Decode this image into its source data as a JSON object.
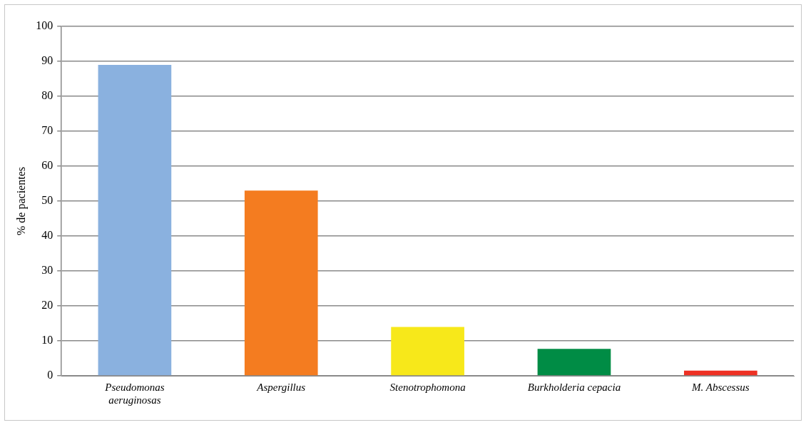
{
  "chart_data": {
    "type": "bar",
    "ylabel": "% de pacientes",
    "categories": [
      "Pseudomonas aeruginosas",
      "Aspergillus",
      "Stenotrophomona",
      "Burkholderia cepacia",
      "M. Abscessus"
    ],
    "values": [
      89,
      53,
      14,
      7.7,
      1.5
    ],
    "colors": [
      "#8ab1df",
      "#f47c20",
      "#f7e81a",
      "#008c45",
      "#ee3124"
    ],
    "ylim": [
      0,
      100
    ],
    "yticks": [
      0,
      10,
      20,
      30,
      40,
      50,
      60,
      70,
      80,
      90,
      100
    ],
    "grid": "y",
    "legend": false
  }
}
